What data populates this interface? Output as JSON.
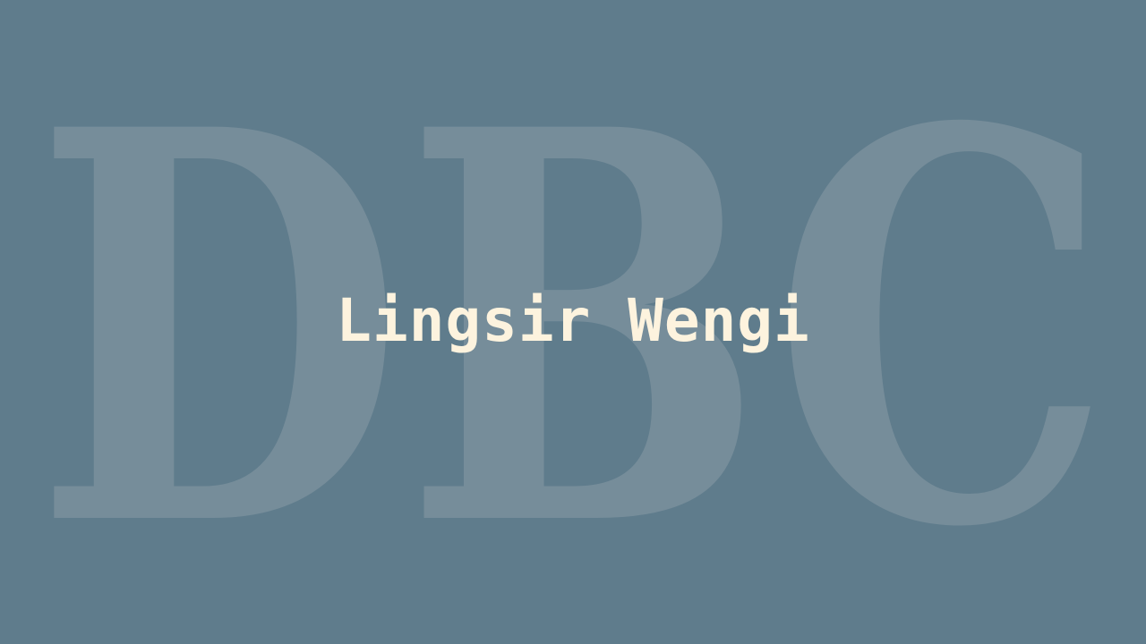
{
  "background_color": "#5f7c8c",
  "watermark": {
    "text": "DBC",
    "color": "#768d9a"
  },
  "title": {
    "text": "Lingsir Wengi",
    "color": "#fdf3de"
  }
}
